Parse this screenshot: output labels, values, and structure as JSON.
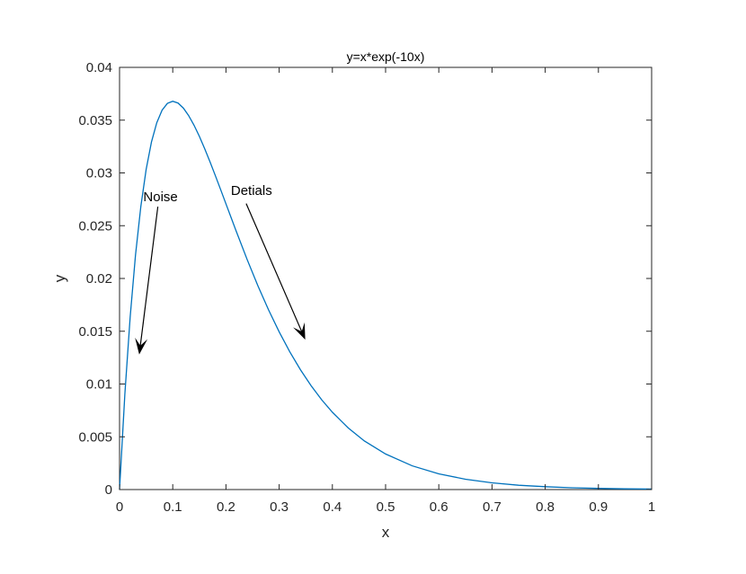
{
  "chart_data": {
    "type": "line",
    "title": "y=x*exp(-10x)",
    "xlabel": "x",
    "ylabel": "y",
    "xlim": [
      0,
      1
    ],
    "ylim": [
      0,
      0.04
    ],
    "xticks": [
      0,
      0.1,
      0.2,
      0.3,
      0.4,
      0.5,
      0.6,
      0.7,
      0.8,
      0.9,
      1
    ],
    "xtick_labels": [
      "0",
      "0.1",
      "0.2",
      "0.3",
      "0.4",
      "0.5",
      "0.6",
      "0.7",
      "0.8",
      "0.9",
      "1"
    ],
    "yticks": [
      0,
      0.005,
      0.01,
      0.015,
      0.02,
      0.025,
      0.03,
      0.035,
      0.04
    ],
    "ytick_labels": [
      "0",
      "0.005",
      "0.01",
      "0.015",
      "0.02",
      "0.025",
      "0.03",
      "0.035",
      "0.04"
    ],
    "grid": false,
    "series": [
      {
        "color": "#0072BD",
        "x": [
          0,
          0.01,
          0.02,
          0.03,
          0.04,
          0.05,
          0.06,
          0.07,
          0.08,
          0.09,
          0.1,
          0.11,
          0.12,
          0.13,
          0.14,
          0.15,
          0.16,
          0.17,
          0.18,
          0.19,
          0.2,
          0.22,
          0.24,
          0.26,
          0.28,
          0.3,
          0.32,
          0.34,
          0.36,
          0.38,
          0.4,
          0.43,
          0.46,
          0.5,
          0.55,
          0.6,
          0.65,
          0.7,
          0.75,
          0.8,
          0.85,
          0.9,
          0.95,
          1
        ],
        "y": [
          0,
          0.00905,
          0.01637,
          0.02222,
          0.02681,
          0.03033,
          0.03293,
          0.03476,
          0.03595,
          0.03659,
          0.03679,
          0.03662,
          0.03614,
          0.03542,
          0.03452,
          0.03347,
          0.0323,
          0.03105,
          0.02975,
          0.02842,
          0.02707,
          0.02438,
          0.02177,
          0.01931,
          0.01703,
          0.01494,
          0.01305,
          0.01135,
          0.00984,
          0.0085,
          0.00733,
          0.00583,
          0.00461,
          0.00337,
          0.00225,
          0.00149,
          0.00098,
          0.00064,
          0.00041,
          0.00027,
          0.00017,
          0.00011,
          7e-05,
          5e-05
        ]
      }
    ],
    "annotations": [
      {
        "text": "Noise",
        "text_at": [
          0.077,
          0.0273
        ],
        "arrow_from": [
          0.072,
          0.0268
        ],
        "arrow_to": [
          0.037,
          0.0128
        ]
      },
      {
        "text": "Detials",
        "text_at": [
          0.248,
          0.0279
        ],
        "arrow_from": [
          0.238,
          0.0271
        ],
        "arrow_to": [
          0.349,
          0.0142
        ]
      }
    ]
  }
}
